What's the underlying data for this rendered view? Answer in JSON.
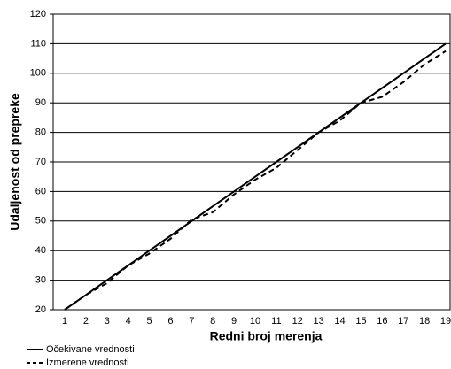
{
  "chart_data": {
    "type": "line",
    "x_label": "Redni broj merenja",
    "y_label": "Udaljenost od prepreke",
    "categories": [
      "1",
      "2",
      "3",
      "4",
      "5",
      "6",
      "7",
      "8",
      "9",
      "10",
      "11",
      "12",
      "13",
      "14",
      "15",
      "16",
      "17",
      "18",
      "19"
    ],
    "series": [
      {
        "name": "Očekivane vrednosti",
        "color": "#000000",
        "dash": "none",
        "values": [
          20,
          25,
          30,
          35,
          40,
          45,
          50,
          55,
          60,
          65,
          70,
          75,
          80,
          85,
          90,
          95,
          100,
          105,
          110
        ]
      },
      {
        "name": "Izmerene vrednosti",
        "color": "#000000",
        "dash": "6 4",
        "values": [
          20,
          25,
          29,
          35,
          39,
          44,
          50.5,
          53,
          59,
          64,
          68,
          74,
          80,
          84,
          90,
          92,
          97,
          103,
          107.5
        ]
      }
    ],
    "ylim": [
      20,
      120
    ],
    "yticks": [
      20,
      30,
      40,
      50,
      60,
      70,
      80,
      90,
      100,
      110,
      120
    ],
    "grid": true
  }
}
